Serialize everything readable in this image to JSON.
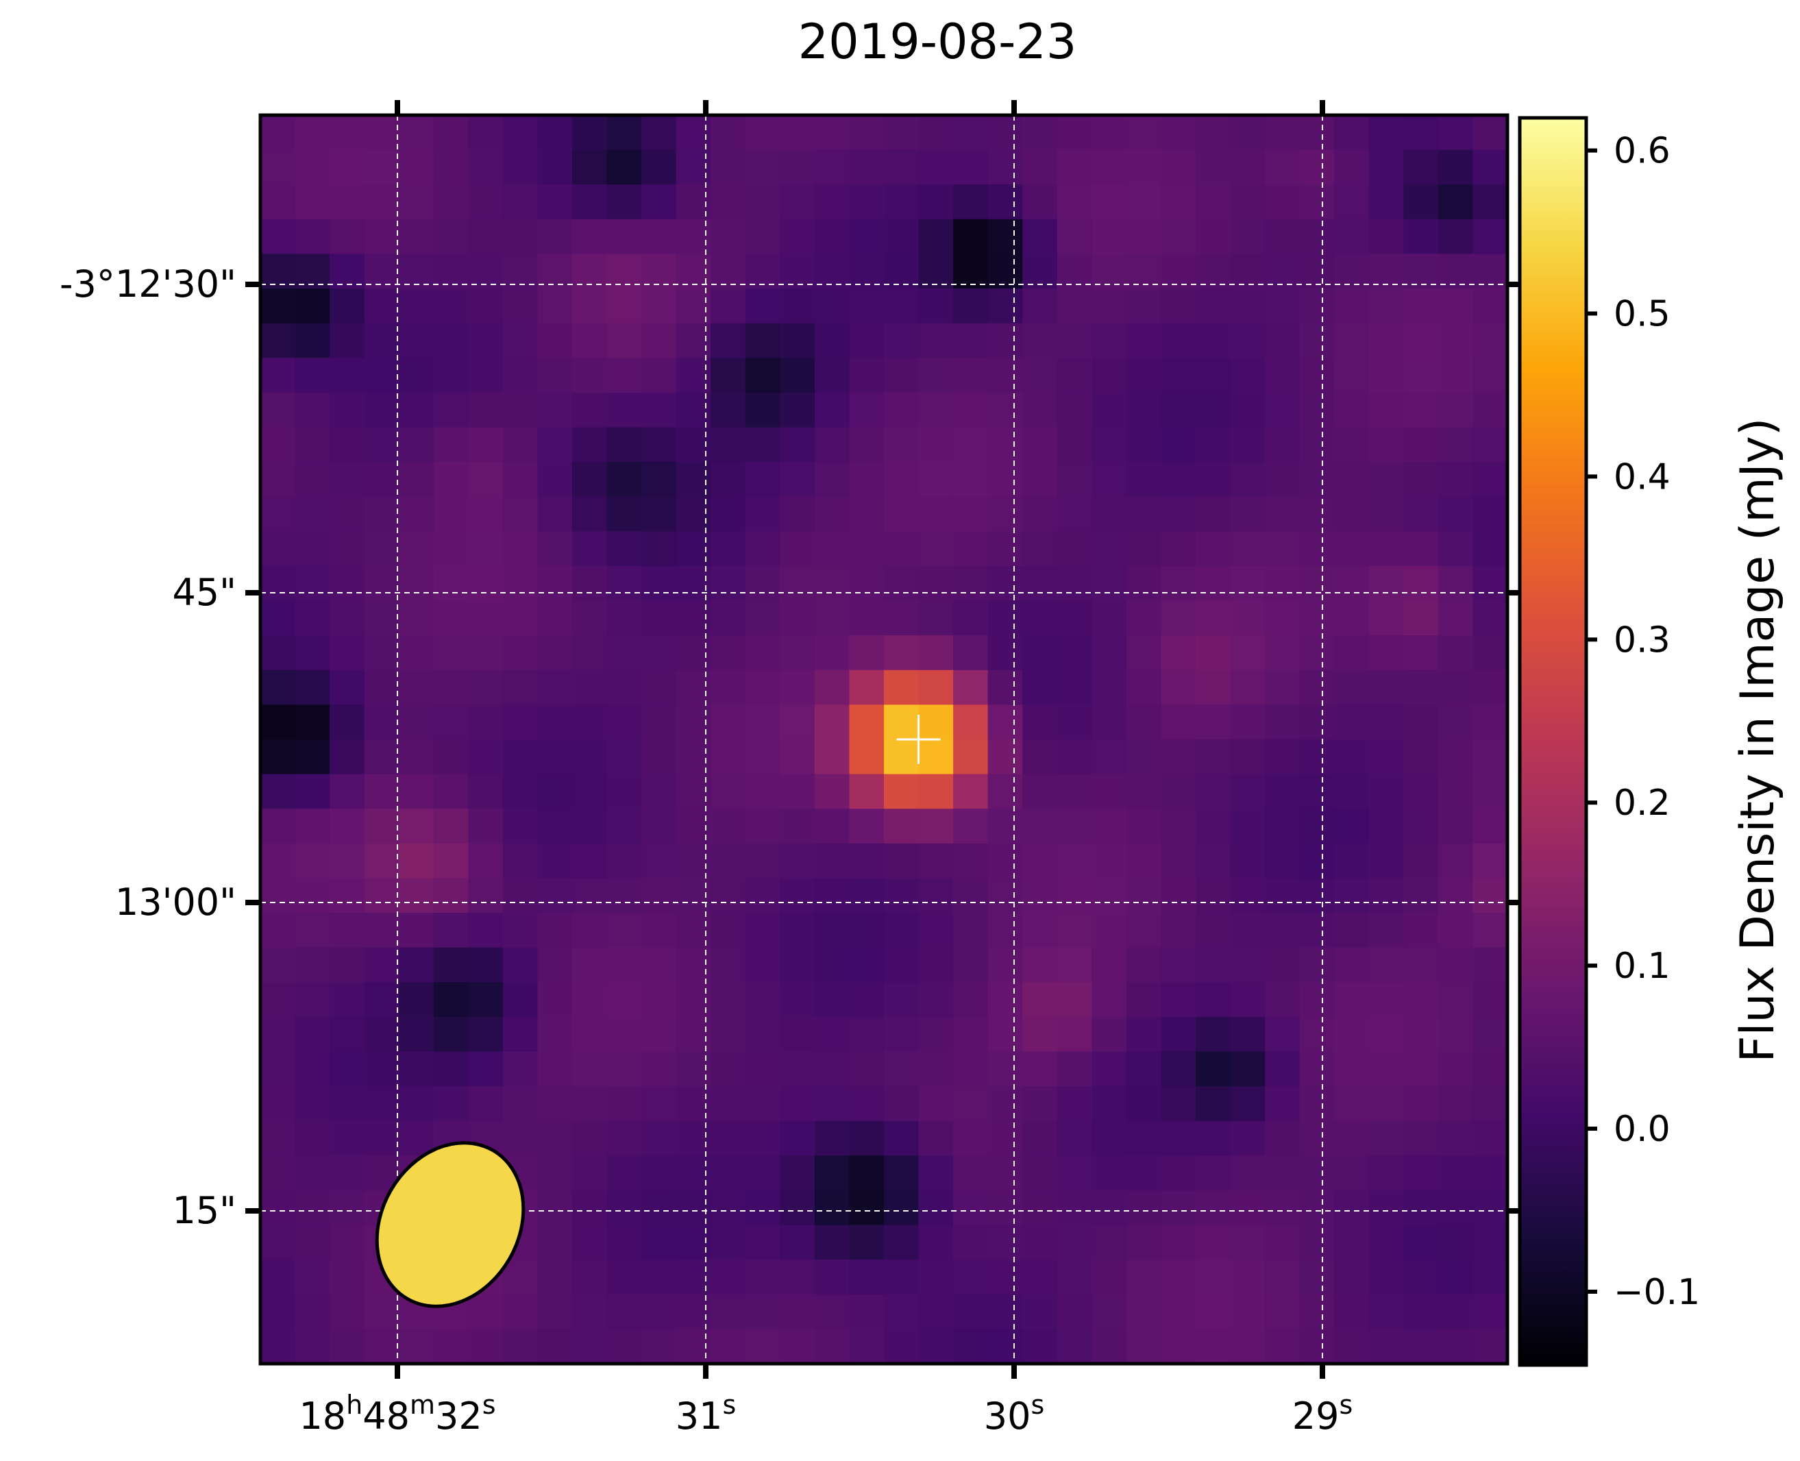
{
  "chart_data": {
    "type": "heatmap",
    "title": "2019-08-23",
    "xlabel": "",
    "ylabel": "",
    "colormap": "inferno",
    "grid": true,
    "grid_color": "#ffffff",
    "x_ticks": [
      {
        "label": "18",
        "sup": "h",
        "label2": "48",
        "sup2": "m",
        "label3": "32",
        "sup3": "s"
      },
      {
        "label": "31",
        "sup": "s"
      },
      {
        "label": "30",
        "sup": "s"
      },
      {
        "label": "29",
        "sup": "s"
      }
    ],
    "y_ticks": [
      "-3°12'30\"",
      "45\"",
      "13'00\"",
      "15\""
    ],
    "colorbar": {
      "label": "Flux Density in Image (mJy)",
      "range": [
        -0.145,
        0.62
      ],
      "ticks": [
        -0.1,
        0.0,
        0.1,
        0.2,
        0.3,
        0.4,
        0.5,
        0.6
      ],
      "tick_labels": [
        "−0.1",
        "0.0",
        "0.1",
        "0.2",
        "0.3",
        "0.4",
        "0.5",
        "0.6"
      ]
    },
    "background_level": 0.04,
    "features": [
      {
        "kind": "source",
        "value": 0.58,
        "sigma": 1.3,
        "col": 18.5,
        "row": 17.5
      },
      {
        "kind": "dip",
        "value": -0.13,
        "sigma": 1.4,
        "col": 17,
        "row": 30.5
      },
      {
        "kind": "dip",
        "value": -0.13,
        "sigma": 1.0,
        "col": 20.5,
        "row": 3.5
      },
      {
        "kind": "dip",
        "value": -0.13,
        "sigma": 1.1,
        "col": 0.5,
        "row": 17.5
      },
      {
        "kind": "dip",
        "value": -0.11,
        "sigma": 1.1,
        "col": 0.5,
        "row": 5
      },
      {
        "kind": "dip",
        "value": -0.08,
        "sigma": 1.3,
        "col": 14,
        "row": 7
      },
      {
        "kind": "dip",
        "value": -0.07,
        "sigma": 1.2,
        "col": 5.5,
        "row": 25
      },
      {
        "kind": "dip",
        "value": -0.06,
        "sigma": 1.0,
        "col": 27.5,
        "row": 27
      },
      {
        "kind": "dip",
        "value": -0.06,
        "sigma": 1.0,
        "col": 10,
        "row": 1
      },
      {
        "kind": "dip",
        "value": -0.06,
        "sigma": 1.0,
        "col": 34,
        "row": 2
      },
      {
        "kind": "dip",
        "value": -0.05,
        "sigma": 1.4,
        "col": 10,
        "row": 10
      },
      {
        "kind": "bump",
        "value": 0.13,
        "sigma": 1.3,
        "col": 4.5,
        "row": 21
      },
      {
        "kind": "bump",
        "value": 0.12,
        "sigma": 1.2,
        "col": 33,
        "row": 13.5
      },
      {
        "kind": "bump",
        "value": 0.11,
        "sigma": 1.2,
        "col": 22.5,
        "row": 25.5
      },
      {
        "kind": "bump",
        "value": 0.1,
        "sigma": 1.1,
        "col": 35.5,
        "row": 22
      },
      {
        "kind": "bump",
        "value": 0.1,
        "sigma": 1.1,
        "col": 30,
        "row": 1
      },
      {
        "kind": "bump",
        "value": 0.08,
        "sigma": 1.2,
        "col": 5.5,
        "row": 9.5
      },
      {
        "kind": "bump",
        "value": 0.08,
        "sigma": 1.2,
        "col": 26.5,
        "row": 15.5
      },
      {
        "kind": "bump",
        "value": 0.07,
        "sigma": 1.2,
        "col": 9.5,
        "row": 4
      },
      {
        "kind": "bump",
        "value": 0.07,
        "sigma": 1.3,
        "col": 15,
        "row": 12.5
      }
    ],
    "source_marker": {
      "col": 18.5,
      "row": 17.5,
      "symbol": "+",
      "color": "#ffffff"
    },
    "beam": {
      "shape": "ellipse",
      "fill": "#f5d84a",
      "edge": "#000000",
      "angle_deg": 30,
      "corner": "bottom-left"
    }
  }
}
